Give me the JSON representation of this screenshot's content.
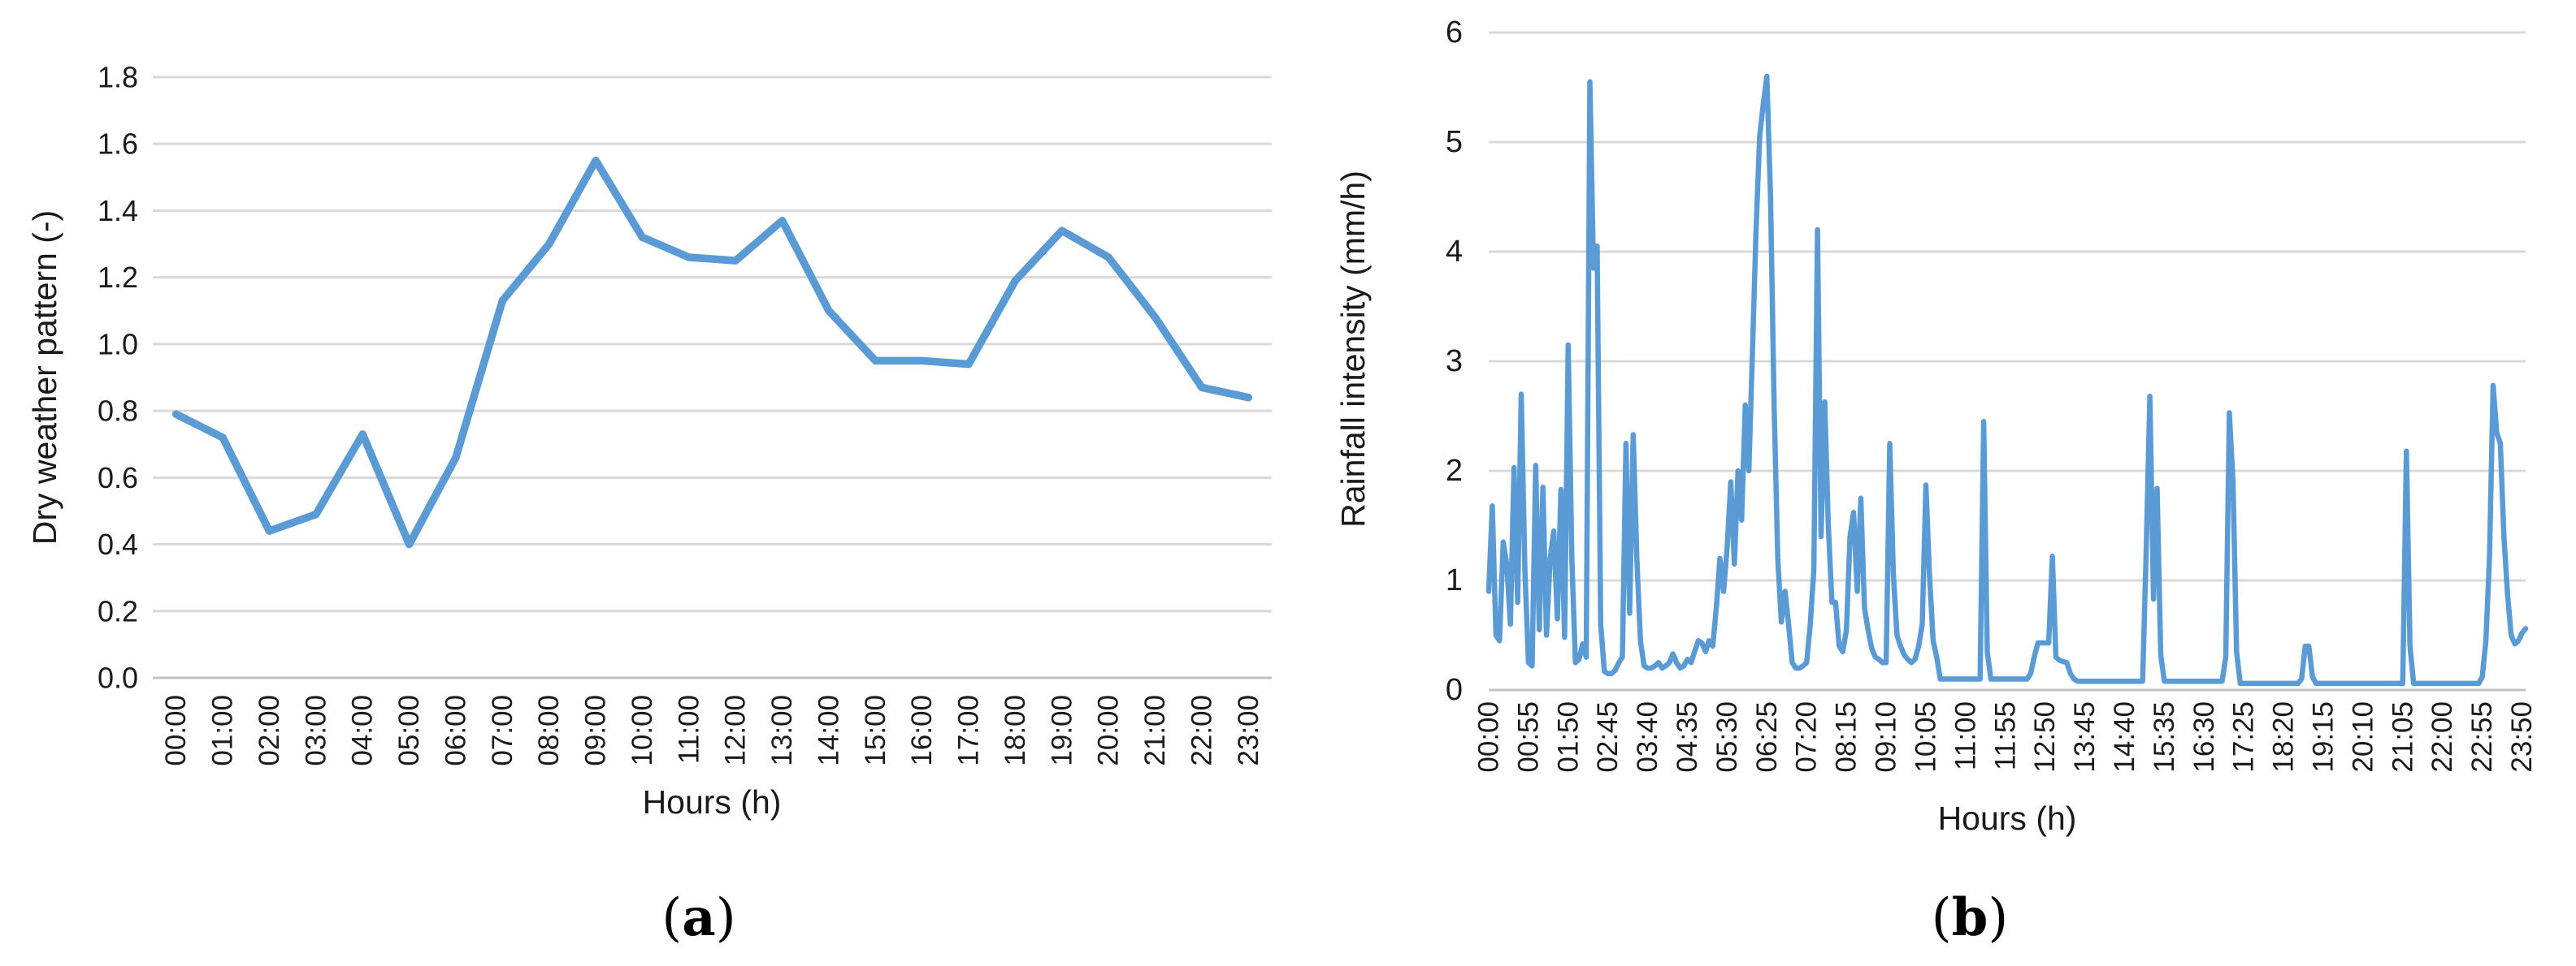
{
  "figure": {
    "background": "#ffffff",
    "line_color": "#5B9BD5",
    "grid_color": "#D9D9D9",
    "axis_line_color": "#C0C0C0",
    "text_color": "#1a1a1a"
  },
  "chart_data": [
    {
      "id": "a",
      "type": "line",
      "title": "",
      "xlabel": "Hours (h)",
      "ylabel": "Dry weather pattern (-)",
      "caption_open": "(",
      "caption_letter": "a",
      "caption_close": ")",
      "ylim": [
        0,
        1.8
      ],
      "ytick_step": 0.2,
      "ytick_labels": [
        "0.0",
        "0.2",
        "0.4",
        "0.6",
        "0.8",
        "1.0",
        "1.2",
        "1.4",
        "1.6",
        "1.8"
      ],
      "grid": true,
      "legend": "none",
      "categories": [
        "00:00",
        "01:00",
        "02:00",
        "03:00",
        "04:00",
        "05:00",
        "06:00",
        "07:00",
        "08:00",
        "09:00",
        "10:00",
        "11:00",
        "12:00",
        "13:00",
        "14:00",
        "15:00",
        "16:00",
        "17:00",
        "18:00",
        "19:00",
        "20:00",
        "21:00",
        "22:00",
        "23:00"
      ],
      "values": [
        0.79,
        0.72,
        0.44,
        0.49,
        0.73,
        0.4,
        0.66,
        1.13,
        1.3,
        1.55,
        1.32,
        1.26,
        1.25,
        1.37,
        1.1,
        0.95,
        0.95,
        0.94,
        1.19,
        1.34,
        1.26,
        1.08,
        0.87,
        0.84
      ]
    },
    {
      "id": "b",
      "type": "line",
      "title": "",
      "xlabel": "Hours (h)",
      "ylabel": "Rainfall intensity (mm/h)",
      "caption_open": "(",
      "caption_letter": "b",
      "caption_close": ")",
      "ylim": [
        0,
        6
      ],
      "ytick_step": 1,
      "ytick_labels": [
        "0",
        "1",
        "2",
        "3",
        "4",
        "5",
        "6"
      ],
      "grid": true,
      "legend": "none",
      "x_start": "00:00",
      "x_step_minutes": 5,
      "tick_every": 11,
      "x_tick_labels": [
        "00:00",
        "00:55",
        "01:50",
        "02:45",
        "03:40",
        "04:35",
        "05:30",
        "06:25",
        "07:20",
        "08:15",
        "09:10",
        "10:05",
        "11:00",
        "11:55",
        "12:50",
        "13:45",
        "14:40",
        "15:35",
        "16:30",
        "17:25",
        "18:20",
        "19:15",
        "20:10",
        "21:05",
        "22:00",
        "22:55",
        "23:50"
      ],
      "values": [
        0.9,
        1.68,
        0.5,
        0.45,
        1.35,
        1.15,
        0.6,
        2.03,
        0.8,
        2.7,
        1.1,
        0.25,
        0.22,
        2.05,
        0.55,
        1.85,
        0.5,
        1.2,
        1.45,
        0.65,
        1.83,
        0.48,
        3.15,
        1.2,
        0.25,
        0.28,
        0.42,
        0.3,
        5.55,
        3.85,
        4.05,
        0.6,
        0.17,
        0.15,
        0.15,
        0.18,
        0.25,
        0.3,
        2.25,
        0.7,
        2.33,
        1.2,
        0.45,
        0.22,
        0.2,
        0.2,
        0.22,
        0.25,
        0.2,
        0.22,
        0.25,
        0.33,
        0.25,
        0.2,
        0.22,
        0.28,
        0.25,
        0.35,
        0.45,
        0.43,
        0.35,
        0.45,
        0.4,
        0.75,
        1.2,
        0.9,
        1.3,
        1.9,
        1.15,
        2.0,
        1.55,
        2.6,
        2.0,
        3.1,
        4.2,
        5.05,
        5.35,
        5.6,
        4.5,
        2.6,
        1.2,
        0.62,
        0.9,
        0.6,
        0.25,
        0.2,
        0.2,
        0.22,
        0.25,
        0.6,
        1.1,
        4.2,
        1.4,
        2.63,
        1.5,
        0.8,
        0.8,
        0.4,
        0.35,
        0.55,
        1.4,
        1.62,
        0.9,
        1.75,
        0.75,
        0.55,
        0.38,
        0.3,
        0.28,
        0.25,
        0.25,
        2.25,
        1.05,
        0.5,
        0.4,
        0.32,
        0.28,
        0.25,
        0.28,
        0.4,
        0.6,
        1.87,
        1.05,
        0.45,
        0.3,
        0.1,
        0.1,
        0.1,
        0.1,
        0.1,
        0.1,
        0.1,
        0.1,
        0.1,
        0.1,
        0.1,
        0.1,
        2.45,
        0.35,
        0.1,
        0.1,
        0.1,
        0.1,
        0.1,
        0.1,
        0.1,
        0.1,
        0.1,
        0.1,
        0.1,
        0.15,
        0.3,
        0.43,
        0.43,
        0.43,
        0.43,
        1.22,
        0.3,
        0.27,
        0.26,
        0.25,
        0.15,
        0.1,
        0.08,
        0.08,
        0.08,
        0.08,
        0.08,
        0.08,
        0.08,
        0.08,
        0.08,
        0.08,
        0.08,
        0.08,
        0.08,
        0.08,
        0.08,
        0.08,
        0.08,
        0.08,
        0.08,
        1.3,
        2.68,
        0.83,
        1.84,
        0.32,
        0.08,
        0.08,
        0.08,
        0.08,
        0.08,
        0.08,
        0.08,
        0.08,
        0.08,
        0.08,
        0.08,
        0.08,
        0.08,
        0.08,
        0.08,
        0.08,
        0.08,
        0.3,
        2.53,
        1.9,
        0.35,
        0.06,
        0.06,
        0.06,
        0.06,
        0.06,
        0.06,
        0.06,
        0.06,
        0.06,
        0.06,
        0.06,
        0.06,
        0.06,
        0.06,
        0.06,
        0.06,
        0.06,
        0.1,
        0.4,
        0.4,
        0.12,
        0.06,
        0.06,
        0.06,
        0.06,
        0.06,
        0.06,
        0.06,
        0.06,
        0.06,
        0.06,
        0.06,
        0.06,
        0.06,
        0.06,
        0.06,
        0.06,
        0.06,
        0.06,
        0.06,
        0.06,
        0.06,
        0.06,
        0.06,
        0.06,
        0.06,
        2.18,
        0.4,
        0.06,
        0.06,
        0.06,
        0.06,
        0.06,
        0.06,
        0.06,
        0.06,
        0.06,
        0.06,
        0.06,
        0.06,
        0.06,
        0.06,
        0.06,
        0.06,
        0.06,
        0.06,
        0.06,
        0.12,
        0.45,
        1.2,
        2.78,
        2.35,
        2.25,
        1.4,
        0.87,
        0.5,
        0.42,
        0.45,
        0.52,
        0.56
      ]
    }
  ]
}
